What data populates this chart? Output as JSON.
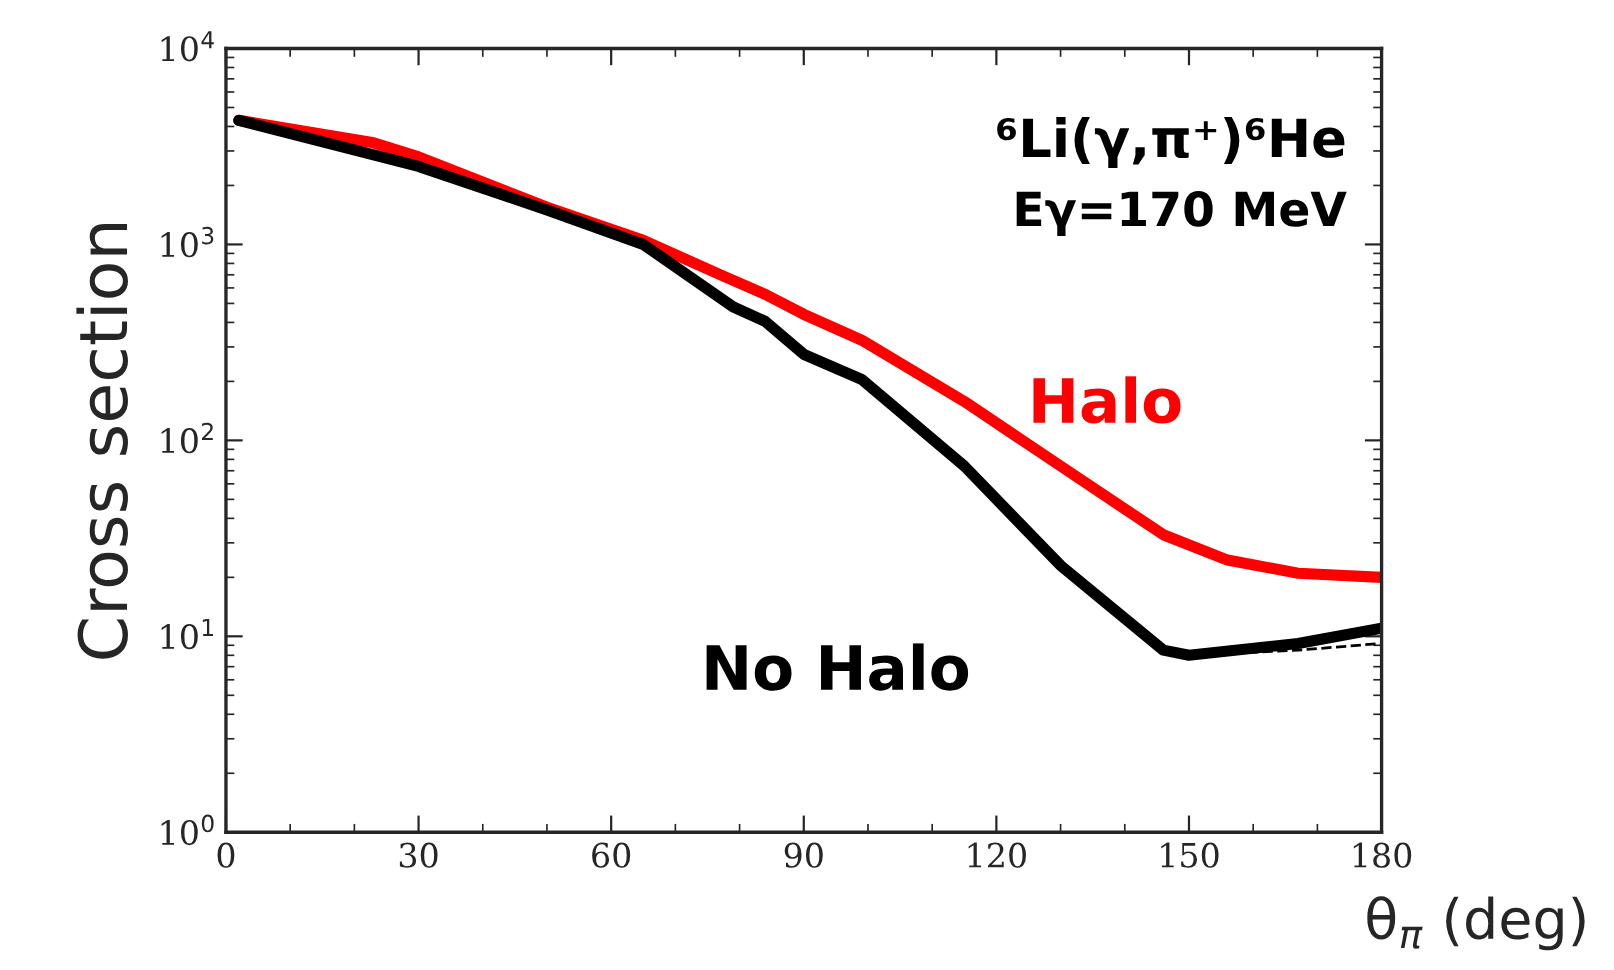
{
  "chart_data": {
    "type": "line",
    "xlabel": "θ$_{π}$ (deg)",
    "ylabel": "Cross section",
    "annotations": [
      "⁶Li(γ,π⁺)⁶He",
      "Eγ=170 MeV"
    ],
    "series": [
      {
        "name": "Halo",
        "color": "#ff0000",
        "x": [
          2,
          23,
          30,
          50,
          65,
          77,
          84,
          90,
          99,
          115,
          130,
          146,
          156,
          167,
          180
        ],
        "values": [
          4300,
          3300,
          2800,
          1550,
          1050,
          700,
          556,
          440,
          325,
          158,
          74,
          33,
          24.5,
          21,
          20
        ]
      },
      {
        "name": "No Halo",
        "color": "#000000",
        "x": [
          2,
          30,
          50,
          65,
          79,
          84,
          90,
          99,
          115,
          130,
          146,
          150,
          167,
          180
        ],
        "values": [
          4300,
          2500,
          1500,
          1000,
          480,
          405,
          275,
          205,
          74,
          23,
          8.5,
          8,
          9.2,
          11
        ]
      },
      {
        "color": "#000000",
        "line_style": "dashed",
        "x": [
          150,
          167,
          180
        ],
        "values": [
          8,
          8.5,
          9.2
        ]
      }
    ],
    "log": true,
    "xlim": [
      0,
      180
    ],
    "xticks": [
      0,
      30,
      60,
      90,
      120,
      150,
      180
    ],
    "ylim": [
      1,
      10000
    ],
    "yticks": [
      {
        "value": 1,
        "label": "10$^{0}$"
      },
      {
        "value": 10,
        "label": "10$^{1}$"
      },
      {
        "value": 100,
        "label": "10$^{2}$"
      },
      {
        "value": 1000,
        "label": "10$^{3}$"
      },
      {
        "value": 10000,
        "label": "10$^{4}$"
      }
    ],
    "grid": false,
    "legend": false
  }
}
